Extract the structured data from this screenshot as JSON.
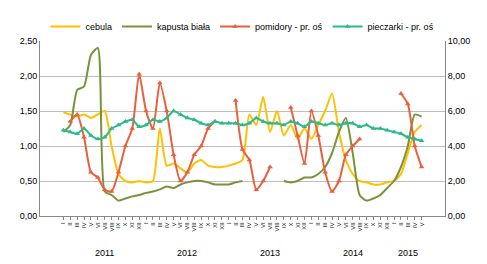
{
  "chart_data": {
    "type": "line",
    "categories": [
      "I",
      "II",
      "III",
      "IV",
      "V",
      "VI",
      "VII",
      "VIII",
      "IX",
      "X",
      "XI",
      "XII",
      "I",
      "II",
      "III",
      "IV",
      "V",
      "VI",
      "VII",
      "VIII",
      "IX",
      "X",
      "XI",
      "XII",
      "I",
      "II",
      "III",
      "IV",
      "V",
      "VI",
      "VII",
      "VIII",
      "IX",
      "X",
      "XI",
      "XII",
      "I",
      "II",
      "III",
      "IV",
      "V",
      "VI",
      "VII",
      "VIII",
      "IX",
      "X",
      "XI",
      "XII",
      "I",
      "II",
      "III",
      "IV",
      "V"
    ],
    "annotations": [
      {
        "text": "2011",
        "x": 6
      },
      {
        "text": "2012",
        "x": 18
      },
      {
        "text": "2013",
        "x": 30
      },
      {
        "text": "2014",
        "x": 42
      },
      {
        "text": "2015",
        "x": 50
      }
    ],
    "ylim": [
      0,
      2.5
    ],
    "yticks": [
      {
        "value": 0,
        "label": "0,00"
      },
      {
        "value": 0.5,
        "label": "0,50"
      },
      {
        "value": 1,
        "label": "1,00"
      },
      {
        "value": 1.5,
        "label": "1,50"
      },
      {
        "value": 2,
        "label": "2,00"
      },
      {
        "value": 2.5,
        "label": "2,50"
      }
    ],
    "y2lim": [
      0,
      10
    ],
    "y2ticks": [
      {
        "value": 0,
        "label": "0,00"
      },
      {
        "value": 2,
        "label": "2,00"
      },
      {
        "value": 4,
        "label": "4,00"
      },
      {
        "value": 6,
        "label": "6,00"
      },
      {
        "value": 8,
        "label": "8,00"
      },
      {
        "value": 10,
        "label": "10,00"
      }
    ],
    "grid": true,
    "legend": "top",
    "series": [
      {
        "name": "cebula",
        "color": "#FFC000",
        "line_style": "solid",
        "marker": "none",
        "values": [
          1.48,
          1.45,
          1.42,
          1.45,
          1.4,
          1.45,
          1.5,
          1.0,
          0.6,
          0.5,
          0.48,
          0.5,
          0.48,
          0.5,
          1.25,
          0.72,
          0.75,
          0.68,
          0.62,
          0.75,
          0.8,
          0.72,
          0.7,
          0.7,
          0.72,
          0.75,
          0.8,
          1.45,
          1.3,
          1.7,
          1.2,
          1.5,
          1.15,
          1.3,
          1.1,
          1.25,
          1.1,
          1.3,
          1.5,
          1.75,
          1.2,
          0.8,
          0.6,
          0.5,
          0.48,
          0.45,
          0.45,
          0.48,
          0.5,
          0.6,
          0.9,
          1.2,
          1.3
        ]
      },
      {
        "name": "kapusta biała",
        "color": "#77933C",
        "line_style": "solid",
        "marker": "none",
        "values": [
          1.2,
          1.3,
          1.8,
          1.85,
          2.3,
          2.4,
          0.35,
          0.3,
          0.22,
          0.25,
          0.28,
          0.3,
          0.33,
          0.35,
          0.38,
          0.42,
          0.4,
          0.45,
          0.48,
          0.5,
          0.5,
          0.48,
          0.45,
          0.45,
          0.45,
          0.48,
          0.5,
          null,
          null,
          null,
          null,
          null,
          0.5,
          0.48,
          0.5,
          0.55,
          0.55,
          0.6,
          0.7,
          0.9,
          1.2,
          1.4,
          0.9,
          0.3,
          0.22,
          0.25,
          0.3,
          0.4,
          0.5,
          0.7,
          1.0,
          1.45,
          1.42
        ]
      },
      {
        "name": "pomidory - pr. oś",
        "color": "#E8603C",
        "axis": "y2",
        "line_style": "solid",
        "marker": "triangle",
        "values": [
          null,
          5.4,
          5.8,
          4.5,
          2.5,
          2.2,
          1.5,
          1.4,
          2.5,
          4.0,
          5.0,
          8.1,
          6.0,
          5.0,
          7.6,
          6.0,
          3.5,
          2.0,
          2.5,
          3.5,
          4.0,
          5.0,
          5.4,
          null,
          null,
          6.6,
          3.8,
          3.2,
          1.5,
          2.0,
          2.8,
          null,
          null,
          6.2,
          4.6,
          3.0,
          6.0,
          4.6,
          2.5,
          1.4,
          2.0,
          3.5,
          4.0,
          4.4,
          null,
          null,
          null,
          null,
          null,
          7.0,
          6.4,
          4.0,
          2.8
        ]
      },
      {
        "name": "pieczarki - pr. oś",
        "color": "#2FB98A",
        "axis": "y2",
        "line_style": "solid",
        "marker": "triangle",
        "values": [
          4.9,
          4.8,
          4.7,
          5.0,
          4.6,
          4.4,
          4.5,
          5.0,
          5.2,
          5.4,
          5.5,
          5.1,
          5.2,
          5.5,
          5.4,
          5.6,
          6.0,
          5.8,
          5.6,
          5.5,
          5.3,
          5.2,
          5.4,
          5.3,
          5.3,
          5.3,
          5.2,
          5.3,
          5.6,
          5.4,
          5.3,
          5.3,
          5.2,
          5.4,
          5.3,
          5.1,
          5.4,
          5.3,
          5.2,
          5.3,
          5.2,
          5.3,
          5.3,
          5.1,
          5.2,
          5.0,
          5.0,
          4.9,
          4.8,
          4.7,
          4.5,
          4.4,
          4.3
        ]
      }
    ]
  }
}
